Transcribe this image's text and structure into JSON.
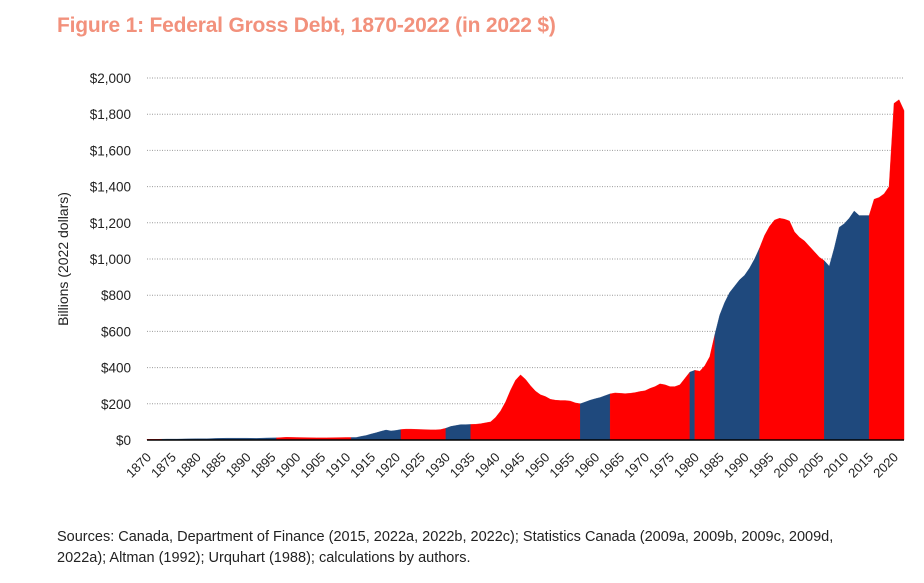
{
  "title": "Figure 1: Federal Gross Debt, 1870-2022 (in 2022 $)",
  "sources": "Sources: Canada, Department of Finance (2015, 2022a, 2022b, 2022c); Statistics Canada (2009a, 2009b, 2009c, 2009d, 2022a); Altman (1992); Urquhart (1988); calculations by authors.",
  "colors": {
    "red": "#ff0000",
    "blue": "#1f497d",
    "title": "#f2917c",
    "grid": "#9a9a9a"
  },
  "chart_data": {
    "type": "area",
    "title": "Figure 1: Federal Gross Debt, 1870-2022 (in 2022 $)",
    "xlabel": "",
    "ylabel": "Billions (2022 dollars)",
    "ylim": [
      0,
      2000
    ],
    "yticks": [
      0,
      200,
      400,
      600,
      800,
      1000,
      1200,
      1400,
      1600,
      1800,
      2000
    ],
    "ytick_labels": [
      "$0",
      "$200",
      "$400",
      "$600",
      "$800",
      "$1,000",
      "$1,200",
      "$1,400",
      "$1,600",
      "$1,800",
      "$2,000"
    ],
    "xlim": [
      1870,
      2022
    ],
    "xticks": [
      1870,
      1875,
      1880,
      1885,
      1890,
      1895,
      1900,
      1905,
      1910,
      1915,
      1920,
      1925,
      1930,
      1935,
      1940,
      1945,
      1950,
      1955,
      1960,
      1965,
      1970,
      1975,
      1980,
      1985,
      1990,
      1995,
      2000,
      2005,
      2010,
      2015,
      2020
    ],
    "grid": "horizontal dotted",
    "series": [
      {
        "name": "Federal Gross Debt",
        "points": [
          [
            1870,
            4
          ],
          [
            1872,
            4
          ],
          [
            1874,
            5
          ],
          [
            1876,
            5
          ],
          [
            1878,
            6
          ],
          [
            1880,
            7
          ],
          [
            1882,
            7
          ],
          [
            1884,
            9
          ],
          [
            1886,
            10
          ],
          [
            1888,
            10
          ],
          [
            1890,
            10
          ],
          [
            1892,
            9
          ],
          [
            1894,
            11
          ],
          [
            1896,
            12
          ],
          [
            1898,
            15
          ],
          [
            1900,
            14
          ],
          [
            1902,
            13
          ],
          [
            1904,
            12
          ],
          [
            1906,
            12
          ],
          [
            1908,
            13
          ],
          [
            1910,
            14
          ],
          [
            1912,
            14
          ],
          [
            1913,
            20
          ],
          [
            1914,
            25
          ],
          [
            1915,
            33
          ],
          [
            1916,
            40
          ],
          [
            1917,
            48
          ],
          [
            1918,
            55
          ],
          [
            1919,
            50
          ],
          [
            1920,
            53
          ],
          [
            1921,
            58
          ],
          [
            1922,
            60
          ],
          [
            1923,
            60
          ],
          [
            1924,
            59
          ],
          [
            1925,
            58
          ],
          [
            1926,
            57
          ],
          [
            1927,
            56
          ],
          [
            1928,
            56
          ],
          [
            1929,
            58
          ],
          [
            1930,
            65
          ],
          [
            1931,
            75
          ],
          [
            1932,
            80
          ],
          [
            1933,
            85
          ],
          [
            1934,
            85
          ],
          [
            1935,
            86
          ],
          [
            1936,
            87
          ],
          [
            1937,
            90
          ],
          [
            1938,
            95
          ],
          [
            1939,
            100
          ],
          [
            1940,
            125
          ],
          [
            1941,
            160
          ],
          [
            1942,
            210
          ],
          [
            1943,
            275
          ],
          [
            1944,
            330
          ],
          [
            1945,
            360
          ],
          [
            1946,
            335
          ],
          [
            1947,
            300
          ],
          [
            1948,
            270
          ],
          [
            1949,
            250
          ],
          [
            1950,
            240
          ],
          [
            1951,
            225
          ],
          [
            1952,
            220
          ],
          [
            1953,
            218
          ],
          [
            1954,
            218
          ],
          [
            1955,
            215
          ],
          [
            1956,
            205
          ],
          [
            1957,
            200
          ],
          [
            1958,
            210
          ],
          [
            1959,
            220
          ],
          [
            1960,
            228
          ],
          [
            1961,
            235
          ],
          [
            1962,
            245
          ],
          [
            1963,
            255
          ],
          [
            1964,
            260
          ],
          [
            1965,
            258
          ],
          [
            1966,
            256
          ],
          [
            1967,
            258
          ],
          [
            1968,
            262
          ],
          [
            1969,
            268
          ],
          [
            1970,
            272
          ],
          [
            1971,
            285
          ],
          [
            1972,
            295
          ],
          [
            1973,
            310
          ],
          [
            1974,
            305
          ],
          [
            1975,
            295
          ],
          [
            1976,
            295
          ],
          [
            1977,
            305
          ],
          [
            1978,
            340
          ],
          [
            1979,
            375
          ],
          [
            1980,
            385
          ],
          [
            1981,
            380
          ],
          [
            1982,
            410
          ],
          [
            1983,
            460
          ],
          [
            1984,
            580
          ],
          [
            1985,
            690
          ],
          [
            1986,
            760
          ],
          [
            1987,
            815
          ],
          [
            1988,
            850
          ],
          [
            1989,
            885
          ],
          [
            1990,
            910
          ],
          [
            1991,
            950
          ],
          [
            1992,
            1000
          ],
          [
            1993,
            1060
          ],
          [
            1994,
            1130
          ],
          [
            1995,
            1180
          ],
          [
            1996,
            1215
          ],
          [
            1997,
            1225
          ],
          [
            1998,
            1220
          ],
          [
            1999,
            1210
          ],
          [
            2000,
            1150
          ],
          [
            2001,
            1120
          ],
          [
            2002,
            1100
          ],
          [
            2003,
            1070
          ],
          [
            2004,
            1040
          ],
          [
            2005,
            1010
          ],
          [
            2006,
            990
          ],
          [
            2007,
            960
          ],
          [
            2008,
            1060
          ],
          [
            2009,
            1175
          ],
          [
            2010,
            1195
          ],
          [
            2011,
            1225
          ],
          [
            2012,
            1265
          ],
          [
            2013,
            1240
          ],
          [
            2014,
            1240
          ],
          [
            2015,
            1240
          ],
          [
            2016,
            1330
          ],
          [
            2017,
            1340
          ],
          [
            2018,
            1360
          ],
          [
            2019,
            1400
          ],
          [
            2020,
            1860
          ],
          [
            2021,
            1880
          ],
          [
            2022,
            1820
          ]
        ]
      }
    ],
    "colored_periods": [
      {
        "from": 1870,
        "to": 1873,
        "color": "red"
      },
      {
        "from": 1873,
        "to": 1896,
        "color": "blue"
      },
      {
        "from": 1896,
        "to": 1911,
        "color": "red"
      },
      {
        "from": 1911,
        "to": 1921,
        "color": "blue"
      },
      {
        "from": 1921,
        "to": 1930,
        "color": "red"
      },
      {
        "from": 1930,
        "to": 1935,
        "color": "blue"
      },
      {
        "from": 1935,
        "to": 1957,
        "color": "red"
      },
      {
        "from": 1957,
        "to": 1963,
        "color": "blue"
      },
      {
        "from": 1963,
        "to": 1979,
        "color": "red"
      },
      {
        "from": 1979,
        "to": 1980,
        "color": "blue"
      },
      {
        "from": 1980,
        "to": 1984,
        "color": "red"
      },
      {
        "from": 1984,
        "to": 1993,
        "color": "blue"
      },
      {
        "from": 1993,
        "to": 2006,
        "color": "red"
      },
      {
        "from": 2006,
        "to": 2015,
        "color": "blue"
      },
      {
        "from": 2015,
        "to": 2022,
        "color": "red"
      }
    ]
  }
}
